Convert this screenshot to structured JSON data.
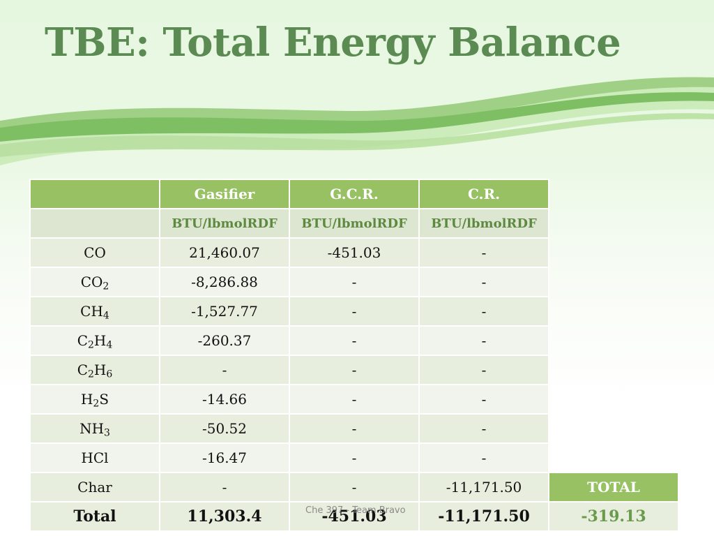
{
  "slide": {
    "title": "TBE: Total Energy Balance"
  },
  "table": {
    "columns": [
      "",
      "Gasifier",
      "G.C.R.",
      "C.R."
    ],
    "units": [
      "",
      "BTU/lbmolRDF",
      "BTU/lbmolRDF",
      "BTU/lbmolRDF"
    ],
    "rows": [
      {
        "species": [
          {
            "t": "CO"
          }
        ],
        "gasifier": "21,460.07",
        "gcr": "-451.03",
        "cr": "-"
      },
      {
        "species": [
          {
            "t": "CO"
          },
          {
            "s": "2"
          }
        ],
        "gasifier": "-8,286.88",
        "gcr": "-",
        "cr": "-"
      },
      {
        "species": [
          {
            "t": "CH"
          },
          {
            "s": "4"
          }
        ],
        "gasifier": "-1,527.77",
        "gcr": "-",
        "cr": "-"
      },
      {
        "species": [
          {
            "t": "C"
          },
          {
            "s": "2"
          },
          {
            "t": "H"
          },
          {
            "s": "4"
          }
        ],
        "gasifier": "-260.37",
        "gcr": "-",
        "cr": "-"
      },
      {
        "species": [
          {
            "t": "C"
          },
          {
            "s": "2"
          },
          {
            "t": "H"
          },
          {
            "s": "6"
          }
        ],
        "gasifier": "-",
        "gcr": "-",
        "cr": "-"
      },
      {
        "species": [
          {
            "t": "H"
          },
          {
            "s": "2"
          },
          {
            "t": "S"
          }
        ],
        "gasifier": "-14.66",
        "gcr": "-",
        "cr": "-"
      },
      {
        "species": [
          {
            "t": "NH"
          },
          {
            "s": "3"
          }
        ],
        "gasifier": "-50.52",
        "gcr": "-",
        "cr": "-"
      },
      {
        "species": [
          {
            "t": "HCl"
          }
        ],
        "gasifier": "-16.47",
        "gcr": "-",
        "cr": "-"
      },
      {
        "species": [
          {
            "t": "Char"
          }
        ],
        "gasifier": "-",
        "gcr": "-",
        "cr": "-11,171.50"
      }
    ],
    "total": {
      "label": "Total",
      "gasifier": "11,303.4",
      "gcr": "-451.03",
      "cr": "-11,171.50"
    },
    "grand_total": {
      "label": "TOTAL",
      "value": "-319.13"
    }
  },
  "footer": {
    "text": "Che 397 - Team Bravo"
  },
  "colors": {
    "title": "#5b8a52",
    "header_bg": "#97c163",
    "unit_text": "#5d8a40",
    "grand_total_value": "#6a9a4c"
  }
}
